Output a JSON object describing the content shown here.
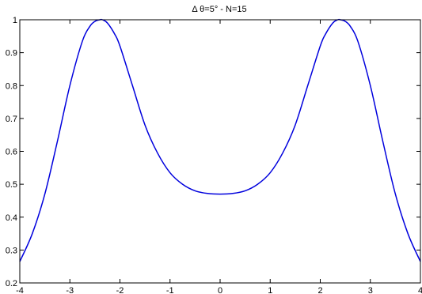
{
  "chart_data": {
    "type": "line",
    "title": "Δ θ=5° - N=15",
    "xlabel": "",
    "ylabel": "",
    "xlim": [
      -4,
      4
    ],
    "ylim": [
      0.2,
      1
    ],
    "xticks": [
      -4,
      -3,
      -2,
      -1,
      0,
      1,
      2,
      3,
      4
    ],
    "yticks": [
      0.2,
      0.3,
      0.4,
      0.5,
      0.6,
      0.7,
      0.8,
      0.9,
      1
    ],
    "xtick_labels": [
      "-4",
      "-3",
      "-2",
      "-1",
      "0",
      "1",
      "2",
      "3",
      "4"
    ],
    "ytick_labels": [
      "0.2",
      "0.3",
      "0.4",
      "0.5",
      "0.6",
      "0.7",
      "0.8",
      "0.9",
      "1"
    ],
    "grid": false,
    "series": [
      {
        "color": "#0000dd",
        "x": [
          -4,
          -3.75,
          -3.5,
          -3.25,
          -3,
          -2.75,
          -2.6,
          -2.5,
          -2.4,
          -2.35,
          -2.25,
          -2.1,
          -2,
          -1.75,
          -1.5,
          -1.25,
          -1,
          -0.75,
          -0.5,
          -0.25,
          0,
          0.25,
          0.5,
          0.75,
          1,
          1.25,
          1.5,
          1.75,
          2,
          2.1,
          2.25,
          2.35,
          2.4,
          2.5,
          2.6,
          2.75,
          3,
          3.25,
          3.5,
          3.75,
          4
        ],
        "y": [
          0.265,
          0.35,
          0.47,
          0.63,
          0.8,
          0.935,
          0.98,
          0.995,
          1.0,
          1.0,
          0.99,
          0.955,
          0.92,
          0.8,
          0.68,
          0.595,
          0.535,
          0.5,
          0.48,
          0.472,
          0.47,
          0.472,
          0.48,
          0.5,
          0.535,
          0.595,
          0.68,
          0.8,
          0.92,
          0.955,
          0.99,
          1.0,
          1.0,
          0.995,
          0.98,
          0.935,
          0.8,
          0.63,
          0.47,
          0.35,
          0.265
        ]
      }
    ]
  }
}
